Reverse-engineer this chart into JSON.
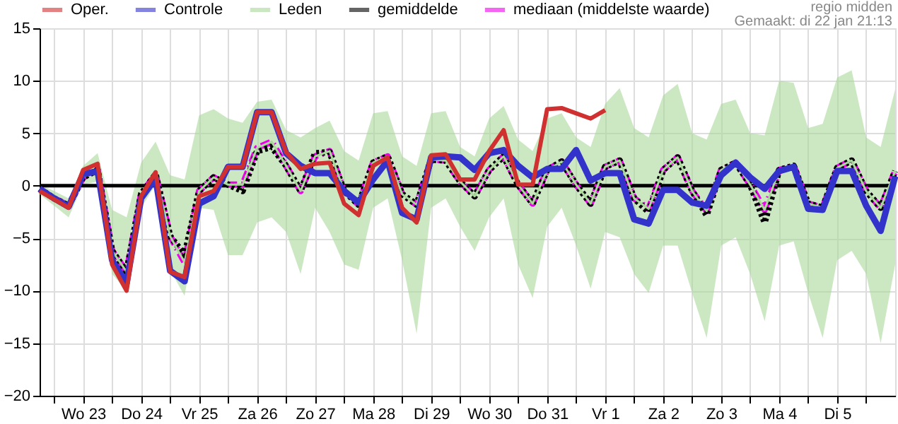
{
  "chart_data": {
    "type": "line",
    "annotations": [
      "regio midden",
      "Gemaakt: di 22 jan 21:13"
    ],
    "x": [
      "--01-22T18:00",
      "--01-23T00:00",
      "--01-23T06:00",
      "--01-23T12:00",
      "--01-23T18:00",
      "--01-24T00:00",
      "--01-24T06:00",
      "--01-24T12:00",
      "--01-24T18:00",
      "--01-25T00:00",
      "--01-25T06:00",
      "--01-25T12:00",
      "--01-25T18:00",
      "--01-26T00:00",
      "--01-26T06:00",
      "--01-26T12:00",
      "--01-26T18:00",
      "--01-27T00:00",
      "--01-27T06:00",
      "--01-27T12:00",
      "--01-27T18:00",
      "--01-28T00:00",
      "--01-28T06:00",
      "--01-28T12:00",
      "--01-28T18:00",
      "--01-29T00:00",
      "--01-29T06:00",
      "--01-29T12:00",
      "--01-29T18:00",
      "--01-30T00:00",
      "--01-30T06:00",
      "--01-30T12:00",
      "--01-30T18:00",
      "--01-31T00:00",
      "--01-31T06:00",
      "--01-31T12:00",
      "--01-31T18:00",
      "--02-01T00:00",
      "--02-01T06:00",
      "--02-01T12:00",
      "--02-01T18:00",
      "--02-02T00:00",
      "--02-02T06:00",
      "--02-02T12:00",
      "--02-02T18:00",
      "--02-03T00:00",
      "--02-03T06:00",
      "--02-03T12:00",
      "--02-03T18:00",
      "--02-04T00:00",
      "--02-04T06:00",
      "--02-04T12:00",
      "--02-04T18:00",
      "--02-05T00:00",
      "--02-05T06:00",
      "--02-05T12:00",
      "--02-05T18:00",
      "--02-06T00:00",
      "--02-06T06:00",
      "--02-06T12:00"
    ],
    "series": [
      {
        "name": "Oper.",
        "color": "#d03030",
        "line_style": "solid",
        "values": [
          -0.5,
          -1.3,
          -2.1,
          1.5,
          2.1,
          -7.5,
          -10.0,
          -1.0,
          1.3,
          -8.2,
          -8.7,
          -1.0,
          -0.5,
          1.8,
          1.8,
          7.0,
          7.0,
          3.2,
          1.6,
          2.1,
          2.2,
          -1.7,
          -2.8,
          1.9,
          2.7,
          -2.1,
          -3.5,
          2.9,
          3.0,
          0.6,
          0.6,
          3.3,
          5.3,
          0.1,
          0.1,
          7.3,
          7.4,
          6.9,
          6.4,
          7.2,
          null,
          null,
          null,
          null,
          null,
          null,
          null,
          null,
          null,
          null,
          null,
          null,
          null,
          null,
          null,
          null,
          null,
          null,
          null,
          null
        ]
      },
      {
        "name": "Controle",
        "color": "#3333cc",
        "line_style": "solid",
        "values": [
          -0.3,
          -1.2,
          -2.0,
          1.1,
          1.4,
          -7.1,
          -9.3,
          -1.2,
          0.7,
          -8.1,
          -9.1,
          -1.7,
          -1.0,
          1.8,
          1.8,
          7.0,
          7.0,
          3.1,
          1.9,
          1.2,
          1.2,
          -0.5,
          -1.6,
          0.6,
          2.4,
          -2.6,
          -3.2,
          2.7,
          2.8,
          2.7,
          1.5,
          3.1,
          3.4,
          1.9,
          0.8,
          1.6,
          1.6,
          3.4,
          0.5,
          1.2,
          1.2,
          -3.2,
          -3.6,
          -0.4,
          -0.4,
          -1.6,
          -1.9,
          1.0,
          2.2,
          0.8,
          -0.3,
          1.4,
          1.8,
          -2.2,
          -2.3,
          1.4,
          1.4,
          -1.9,
          -4.3,
          0.9
        ]
      },
      {
        "name": "Leden",
        "color": "#a8d89a",
        "line_style": "solid",
        "values": [
          -0.3,
          -1.2,
          -1.9,
          0.8,
          1.5,
          -6.2,
          -8.2,
          -0.8,
          1.1,
          -4.8,
          -7.3,
          -0.5,
          0.8,
          0.1,
          0.1,
          3.6,
          4.2,
          1.9,
          -0.5,
          2.8,
          3.3,
          -0.5,
          -1.8,
          2.2,
          2.8,
          -0.8,
          -1.8,
          2.5,
          2.4,
          0.4,
          -1.0,
          1.5,
          2.8,
          0.1,
          -1.7,
          1.5,
          2.3,
          0.1,
          -1.7,
          1.8,
          2.4,
          -1.2,
          -2.2,
          1.5,
          2.7,
          -0.5,
          -2.4,
          1.5,
          2.2,
          0.1,
          -2.3,
          1.5,
          1.9,
          -1.7,
          -2.1,
          1.7,
          2.4,
          -0.5,
          -2.1,
          1.4
        ],
        "lower": [
          -0.8,
          -1.9,
          -3.0,
          0.1,
          0.4,
          -8.4,
          -10.0,
          -2.1,
          0.1,
          -8.0,
          -10.5,
          -2.1,
          -2.3,
          -6.6,
          -6.6,
          -3.5,
          -3.0,
          -4.4,
          -8.4,
          -2.1,
          -4.4,
          -7.5,
          -8.0,
          -2.1,
          -1.2,
          -7.1,
          -14.1,
          -2.1,
          -1.2,
          -3.9,
          -6.2,
          -3.0,
          -1.2,
          -7.5,
          -10.7,
          -3.9,
          -2.1,
          -5.7,
          -9.8,
          -4.4,
          -4.9,
          -8.4,
          -10.2,
          -5.7,
          -5.7,
          -10.2,
          -14.5,
          -5.7,
          -4.9,
          -8.4,
          -12.9,
          -5.7,
          -5.3,
          -10.2,
          -14.5,
          -7.1,
          -6.2,
          -8.4,
          -15.0,
          -7.5
        ],
        "upper": [
          0.1,
          -0.5,
          -1.2,
          1.9,
          3.1,
          -2.3,
          -3.0,
          2.2,
          4.2,
          1.0,
          0.6,
          6.7,
          7.3,
          6.4,
          6.0,
          8.0,
          8.2,
          5.3,
          4.6,
          5.5,
          6.2,
          3.3,
          2.4,
          6.9,
          7.1,
          2.8,
          1.9,
          6.9,
          7.1,
          3.7,
          2.8,
          6.4,
          7.6,
          4.4,
          3.3,
          6.4,
          6.9,
          4.6,
          3.7,
          7.8,
          9.3,
          5.5,
          4.6,
          8.6,
          9.7,
          5.0,
          4.4,
          7.8,
          8.2,
          5.0,
          4.8,
          10.0,
          9.8,
          5.5,
          5.9,
          10.3,
          11.0,
          4.6,
          3.7,
          9.2
        ]
      },
      {
        "name": "gemiddelde",
        "color": "#000000",
        "line_style": "dotted",
        "values": [
          -0.3,
          -1.2,
          -1.9,
          0.8,
          1.5,
          -6.2,
          -8.2,
          -0.8,
          1.1,
          -4.8,
          -6.6,
          -0.5,
          0.8,
          0.1,
          -0.5,
          3.3,
          3.7,
          1.9,
          -0.5,
          3.1,
          3.2,
          -0.5,
          -1.8,
          2.2,
          2.8,
          -0.8,
          -1.8,
          2.5,
          2.4,
          0.4,
          -1.0,
          1.5,
          2.8,
          0.1,
          -1.7,
          1.5,
          2.3,
          0.1,
          -1.7,
          1.8,
          2.4,
          -1.2,
          -2.5,
          1.5,
          2.7,
          -0.5,
          -2.8,
          1.5,
          2.2,
          0.1,
          -3.5,
          1.5,
          1.9,
          -1.7,
          -2.1,
          1.7,
          2.4,
          -0.5,
          -2.1,
          1.4
        ]
      },
      {
        "name": "mediaan (middelste waarde)",
        "color": "#ee00ee",
        "line_style": "dashed",
        "values": [
          -0.3,
          -1.2,
          -1.9,
          0.8,
          1.5,
          -6.2,
          -8.2,
          -0.8,
          1.1,
          -4.8,
          -7.3,
          -0.5,
          0.8,
          0.1,
          0.1,
          3.6,
          4.2,
          1.9,
          -0.5,
          2.8,
          3.3,
          -0.5,
          -1.8,
          2.2,
          2.8,
          -0.8,
          -1.8,
          2.5,
          2.4,
          0.4,
          -1.0,
          1.5,
          2.8,
          0.1,
          -1.7,
          1.5,
          2.3,
          0.1,
          -1.7,
          1.8,
          2.4,
          -1.2,
          -2.2,
          1.5,
          2.7,
          -0.5,
          -2.4,
          1.5,
          2.2,
          0.1,
          -2.3,
          1.5,
          1.9,
          -1.7,
          -2.1,
          1.7,
          2.4,
          -0.5,
          -2.1,
          1.4
        ]
      }
    ],
    "xlim": [
      "--01-22T18:00",
      "--02-06T12:00"
    ],
    "xticks": [
      {
        "value": "--01-23T00:00",
        "label": null
      },
      {
        "value": "--01-23T12:00",
        "label": "Wo 23"
      },
      {
        "value": "--01-24T00:00",
        "label": null
      },
      {
        "value": "--01-24T12:00",
        "label": "Do 24"
      },
      {
        "value": "--01-25T00:00",
        "label": null
      },
      {
        "value": "--01-25T12:00",
        "label": "Vr 25"
      },
      {
        "value": "--01-26T00:00",
        "label": null
      },
      {
        "value": "--01-26T12:00",
        "label": "Za 26"
      },
      {
        "value": "--01-27T00:00",
        "label": null
      },
      {
        "value": "--01-27T12:00",
        "label": "Zo 27"
      },
      {
        "value": "--01-28T00:00",
        "label": null
      },
      {
        "value": "--01-28T12:00",
        "label": "Ma 28"
      },
      {
        "value": "--01-29T00:00",
        "label": null
      },
      {
        "value": "--01-29T12:00",
        "label": "Di 29"
      },
      {
        "value": "--01-30T00:00",
        "label": null
      },
      {
        "value": "--01-30T12:00",
        "label": "Wo 30"
      },
      {
        "value": "--01-31T00:00",
        "label": null
      },
      {
        "value": "--01-31T12:00",
        "label": "Do 31"
      },
      {
        "value": "--02-01T00:00",
        "label": null
      },
      {
        "value": "--02-01T12:00",
        "label": "Vr 1"
      },
      {
        "value": "--02-02T00:00",
        "label": null
      },
      {
        "value": "--02-02T12:00",
        "label": "Za 2"
      },
      {
        "value": "--02-03T00:00",
        "label": null
      },
      {
        "value": "--02-03T12:00",
        "label": "Zo 3"
      },
      {
        "value": "--02-04T00:00",
        "label": null
      },
      {
        "value": "--02-04T12:00",
        "label": "Ma 4"
      },
      {
        "value": "--02-05T00:00",
        "label": null
      },
      {
        "value": "--02-05T12:00",
        "label": "Di 5"
      },
      {
        "value": "--02-06T00:00",
        "label": null
      }
    ],
    "ylim": [
      -20,
      15
    ],
    "yticks": [
      -20,
      -15,
      -10,
      -5,
      0,
      5,
      10,
      15
    ],
    "ref_lines": [
      {
        "axis": "y",
        "value": 0,
        "label": null,
        "color": "#000000"
      }
    ],
    "grid": true,
    "legend": "top",
    "marker": "none"
  }
}
